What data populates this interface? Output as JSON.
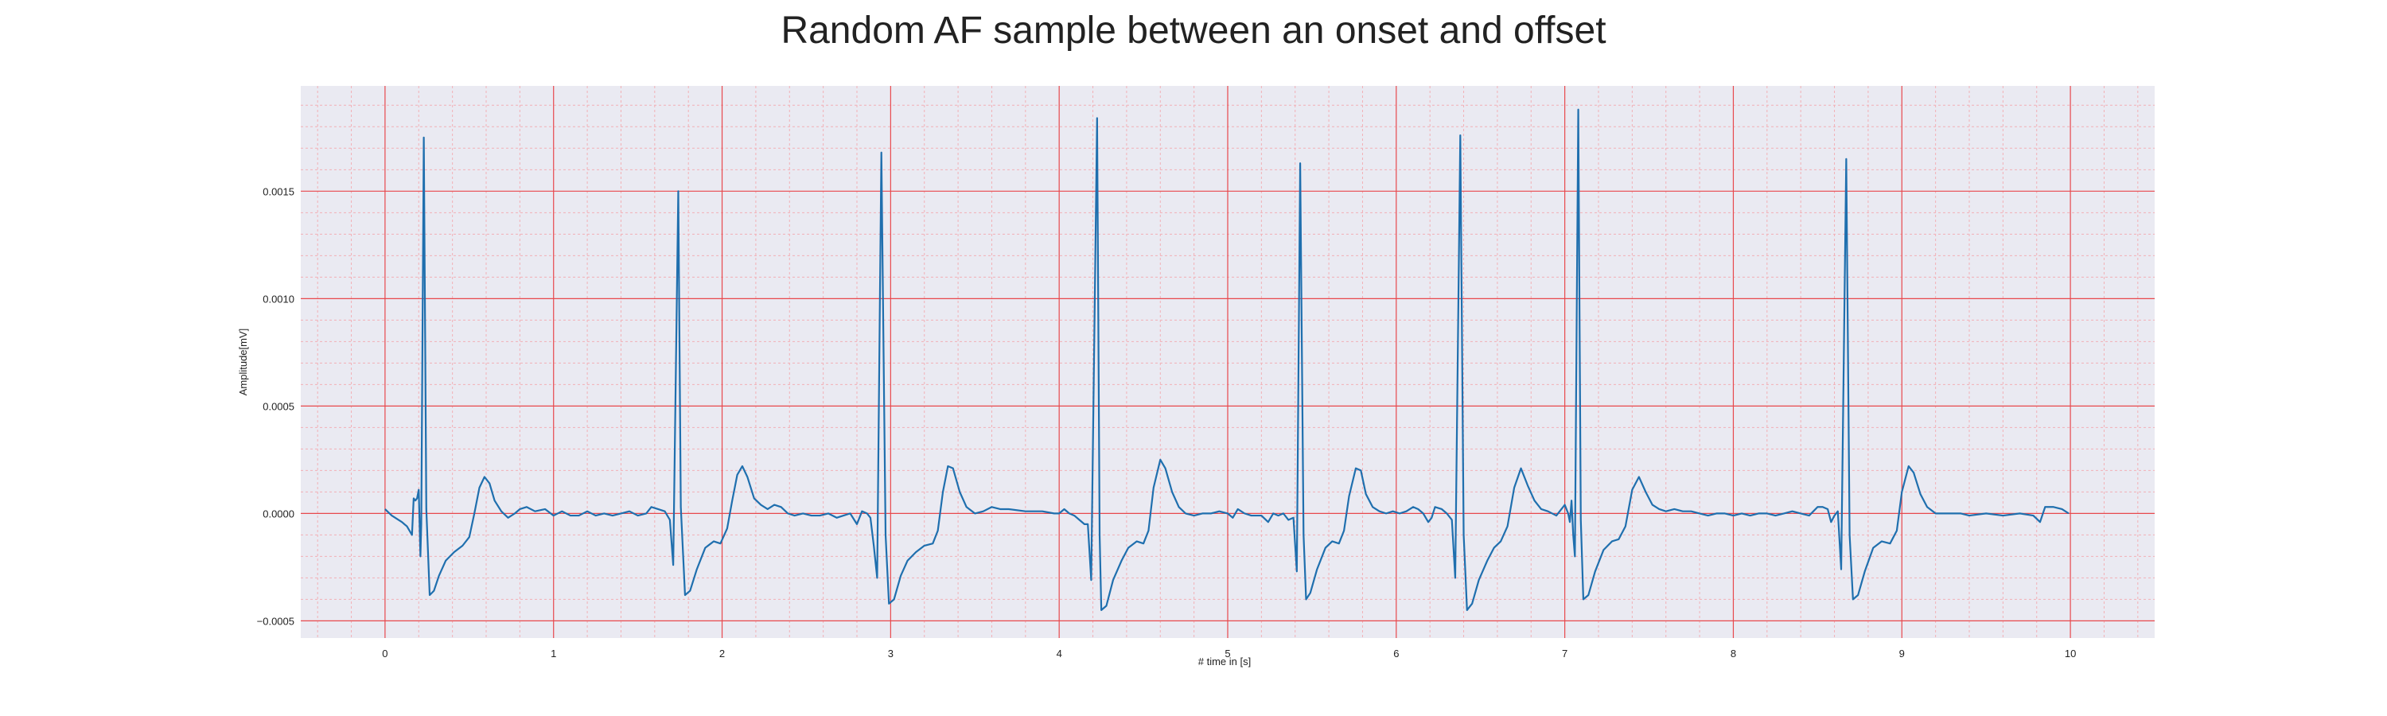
{
  "chart_data": {
    "type": "line",
    "title": "Random AF sample between an onset and offset",
    "xlabel": "# time in [s]",
    "ylabel": "Amplitude[mV]",
    "xlim": [
      -0.5,
      10.5
    ],
    "ylim": [
      -0.00058,
      0.00199
    ],
    "xticks": [
      0,
      1,
      2,
      3,
      4,
      5,
      6,
      7,
      8,
      9,
      10
    ],
    "xtick_labels": [
      "0",
      "1",
      "2",
      "3",
      "4",
      "5",
      "6",
      "7",
      "8",
      "9",
      "10"
    ],
    "yticks": [
      -0.0005,
      0.0,
      0.0005,
      0.001,
      0.0015
    ],
    "ytick_labels": [
      "−0.0005",
      "0.0000",
      "0.0005",
      "0.0010",
      "0.0015"
    ],
    "grid": "on",
    "colors": {
      "plot_background": "#eaeaf2",
      "major_grid": "#e8484d",
      "minor_grid": "#f2b0b6",
      "line": "#1f6fae"
    },
    "series": [
      {
        "points": [
          [
            0.0,
            2e-05
          ],
          [
            0.04,
            -1e-05
          ],
          [
            0.1,
            -4e-05
          ],
          [
            0.13,
            -6e-05
          ],
          [
            0.16,
            -0.0001
          ],
          [
            0.17,
            7e-05
          ],
          [
            0.18,
            6e-05
          ],
          [
            0.19,
            7e-05
          ],
          [
            0.2,
            0.00011
          ],
          [
            0.21,
            -0.0002
          ],
          [
            0.215,
            -5e-05
          ],
          [
            0.23,
            0.00175
          ],
          [
            0.245,
            2e-05
          ],
          [
            0.265,
            -0.00038
          ],
          [
            0.29,
            -0.00036
          ],
          [
            0.32,
            -0.00029
          ],
          [
            0.36,
            -0.00022
          ],
          [
            0.41,
            -0.00018
          ],
          [
            0.46,
            -0.00015
          ],
          [
            0.5,
            -0.00011
          ],
          [
            0.53,
            0.0
          ],
          [
            0.56,
            0.00012
          ],
          [
            0.59,
            0.00017
          ],
          [
            0.62,
            0.00014
          ],
          [
            0.65,
            6e-05
          ],
          [
            0.69,
            1e-05
          ],
          [
            0.73,
            -2e-05
          ],
          [
            0.77,
            0.0
          ],
          [
            0.8,
            2e-05
          ],
          [
            0.84,
            3e-05
          ],
          [
            0.89,
            1e-05
          ],
          [
            0.95,
            2e-05
          ],
          [
            1.0,
            -1e-05
          ],
          [
            1.05,
            1e-05
          ],
          [
            1.1,
            -1e-05
          ],
          [
            1.15,
            -1e-05
          ],
          [
            1.2,
            1e-05
          ],
          [
            1.25,
            -1e-05
          ],
          [
            1.3,
            0.0
          ],
          [
            1.35,
            -1e-05
          ],
          [
            1.4,
            0.0
          ],
          [
            1.45,
            1e-05
          ],
          [
            1.5,
            -1e-05
          ],
          [
            1.55,
            0.0
          ],
          [
            1.58,
            3e-05
          ],
          [
            1.62,
            2e-05
          ],
          [
            1.66,
            1e-05
          ],
          [
            1.69,
            -3e-05
          ],
          [
            1.71,
            -0.00024
          ],
          [
            1.74,
            0.0015
          ],
          [
            1.755,
            3e-05
          ],
          [
            1.78,
            -0.00038
          ],
          [
            1.81,
            -0.00036
          ],
          [
            1.85,
            -0.00026
          ],
          [
            1.9,
            -0.00016
          ],
          [
            1.95,
            -0.00013
          ],
          [
            1.99,
            -0.00014
          ],
          [
            2.03,
            -7e-05
          ],
          [
            2.06,
            6e-05
          ],
          [
            2.09,
            0.00018
          ],
          [
            2.12,
            0.00022
          ],
          [
            2.15,
            0.00017
          ],
          [
            2.19,
            7e-05
          ],
          [
            2.23,
            4e-05
          ],
          [
            2.27,
            2e-05
          ],
          [
            2.31,
            4e-05
          ],
          [
            2.35,
            3e-05
          ],
          [
            2.39,
            0.0
          ],
          [
            2.43,
            -1e-05
          ],
          [
            2.48,
            0.0
          ],
          [
            2.53,
            -1e-05
          ],
          [
            2.58,
            -1e-05
          ],
          [
            2.63,
            0.0
          ],
          [
            2.68,
            -2e-05
          ],
          [
            2.72,
            -1e-05
          ],
          [
            2.76,
            0.0
          ],
          [
            2.8,
            -5e-05
          ],
          [
            2.83,
            1e-05
          ],
          [
            2.86,
            0.0
          ],
          [
            2.88,
            -2e-05
          ],
          [
            2.9,
            -0.00015
          ],
          [
            2.92,
            -0.0003
          ],
          [
            2.945,
            0.00168
          ],
          [
            2.97,
            -0.0001
          ],
          [
            2.99,
            -0.00042
          ],
          [
            3.02,
            -0.0004
          ],
          [
            3.06,
            -0.00029
          ],
          [
            3.1,
            -0.00022
          ],
          [
            3.15,
            -0.00018
          ],
          [
            3.2,
            -0.00015
          ],
          [
            3.25,
            -0.00014
          ],
          [
            3.28,
            -8e-05
          ],
          [
            3.31,
            0.0001
          ],
          [
            3.34,
            0.00022
          ],
          [
            3.37,
            0.00021
          ],
          [
            3.41,
            0.0001
          ],
          [
            3.45,
            3e-05
          ],
          [
            3.5,
            0.0
          ],
          [
            3.55,
            1e-05
          ],
          [
            3.6,
            3e-05
          ],
          [
            3.65,
            2e-05
          ],
          [
            3.7,
            2e-05
          ],
          [
            3.8,
            1e-05
          ],
          [
            3.9,
            1e-05
          ],
          [
            3.97,
            0.0
          ],
          [
            4.0,
            0.0
          ],
          [
            4.03,
            2e-05
          ],
          [
            4.06,
            0.0
          ],
          [
            4.09,
            -1e-05
          ],
          [
            4.12,
            -3e-05
          ],
          [
            4.15,
            -5e-05
          ],
          [
            4.17,
            -5e-05
          ],
          [
            4.19,
            -0.00031
          ],
          [
            4.225,
            0.00184
          ],
          [
            4.24,
            -0.0001
          ],
          [
            4.25,
            -0.00045
          ],
          [
            4.28,
            -0.00043
          ],
          [
            4.32,
            -0.00031
          ],
          [
            4.37,
            -0.00022
          ],
          [
            4.41,
            -0.00016
          ],
          [
            4.46,
            -0.00013
          ],
          [
            4.5,
            -0.00014
          ],
          [
            4.53,
            -8e-05
          ],
          [
            4.56,
            0.00012
          ],
          [
            4.6,
            0.00025
          ],
          [
            4.63,
            0.00021
          ],
          [
            4.67,
            0.0001
          ],
          [
            4.71,
            3e-05
          ],
          [
            4.75,
            0.0
          ],
          [
            4.8,
            -1e-05
          ],
          [
            4.85,
            0.0
          ],
          [
            4.9,
            0.0
          ],
          [
            4.95,
            1e-05
          ],
          [
            5.0,
            0.0
          ],
          [
            5.03,
            -2e-05
          ],
          [
            5.06,
            2e-05
          ],
          [
            5.1,
            0.0
          ],
          [
            5.14,
            -1e-05
          ],
          [
            5.2,
            -1e-05
          ],
          [
            5.24,
            -4e-05
          ],
          [
            5.27,
            0.0
          ],
          [
            5.3,
            -1e-05
          ],
          [
            5.33,
            0.0
          ],
          [
            5.36,
            -3e-05
          ],
          [
            5.39,
            -2e-05
          ],
          [
            5.41,
            -0.00027
          ],
          [
            5.43,
            0.00163
          ],
          [
            5.45,
            -0.0001
          ],
          [
            5.465,
            -0.0004
          ],
          [
            5.49,
            -0.00037
          ],
          [
            5.53,
            -0.00026
          ],
          [
            5.58,
            -0.00016
          ],
          [
            5.62,
            -0.00013
          ],
          [
            5.66,
            -0.00014
          ],
          [
            5.69,
            -8e-05
          ],
          [
            5.72,
            8e-05
          ],
          [
            5.76,
            0.00021
          ],
          [
            5.79,
            0.0002
          ],
          [
            5.82,
            9e-05
          ],
          [
            5.86,
            3e-05
          ],
          [
            5.9,
            1e-05
          ],
          [
            5.94,
            0.0
          ],
          [
            5.98,
            1e-05
          ],
          [
            6.02,
            0.0
          ],
          [
            6.06,
            1e-05
          ],
          [
            6.1,
            3e-05
          ],
          [
            6.13,
            2e-05
          ],
          [
            6.16,
            0.0
          ],
          [
            6.19,
            -4e-05
          ],
          [
            6.21,
            -2e-05
          ],
          [
            6.23,
            3e-05
          ],
          [
            6.27,
            2e-05
          ],
          [
            6.3,
            0.0
          ],
          [
            6.33,
            -3e-05
          ],
          [
            6.35,
            -0.0003
          ],
          [
            6.38,
            0.00176
          ],
          [
            6.4,
            -0.0001
          ],
          [
            6.42,
            -0.00045
          ],
          [
            6.45,
            -0.00042
          ],
          [
            6.49,
            -0.00031
          ],
          [
            6.54,
            -0.00022
          ],
          [
            6.58,
            -0.00016
          ],
          [
            6.62,
            -0.00013
          ],
          [
            6.66,
            -6e-05
          ],
          [
            6.7,
            0.00012
          ],
          [
            6.74,
            0.00021
          ],
          [
            6.78,
            0.00013
          ],
          [
            6.82,
            6e-05
          ],
          [
            6.86,
            2e-05
          ],
          [
            6.9,
            1e-05
          ],
          [
            6.95,
            -1e-05
          ],
          [
            6.98,
            2e-05
          ],
          [
            7.0,
            4e-05
          ],
          [
            7.02,
            0.0
          ],
          [
            7.03,
            -4e-05
          ],
          [
            7.04,
            6e-05
          ],
          [
            7.05,
            -0.0001
          ],
          [
            7.06,
            -0.0002
          ],
          [
            7.08,
            0.00188
          ],
          [
            7.095,
            -3e-05
          ],
          [
            7.11,
            -0.0004
          ],
          [
            7.14,
            -0.00038
          ],
          [
            7.18,
            -0.00027
          ],
          [
            7.23,
            -0.00017
          ],
          [
            7.28,
            -0.00013
          ],
          [
            7.32,
            -0.00012
          ],
          [
            7.36,
            -6e-05
          ],
          [
            7.4,
            0.00011
          ],
          [
            7.44,
            0.00017
          ],
          [
            7.48,
            0.0001
          ],
          [
            7.52,
            4e-05
          ],
          [
            7.56,
            2e-05
          ],
          [
            7.6,
            1e-05
          ],
          [
            7.65,
            2e-05
          ],
          [
            7.7,
            1e-05
          ],
          [
            7.75,
            1e-05
          ],
          [
            7.8,
            0.0
          ],
          [
            7.85,
            -1e-05
          ],
          [
            7.9,
            0.0
          ],
          [
            7.95,
            0.0
          ],
          [
            8.0,
            -1e-05
          ],
          [
            8.05,
            0.0
          ],
          [
            8.1,
            -1e-05
          ],
          [
            8.15,
            0.0
          ],
          [
            8.2,
            0.0
          ],
          [
            8.25,
            -1e-05
          ],
          [
            8.3,
            0.0
          ],
          [
            8.35,
            1e-05
          ],
          [
            8.4,
            0.0
          ],
          [
            8.45,
            -1e-05
          ],
          [
            8.5,
            3e-05
          ],
          [
            8.53,
            3e-05
          ],
          [
            8.56,
            2e-05
          ],
          [
            8.58,
            -4e-05
          ],
          [
            8.6,
            -1e-05
          ],
          [
            8.62,
            1e-05
          ],
          [
            8.64,
            -0.00026
          ],
          [
            8.67,
            0.00165
          ],
          [
            8.69,
            -0.0001
          ],
          [
            8.71,
            -0.0004
          ],
          [
            8.74,
            -0.00038
          ],
          [
            8.78,
            -0.00027
          ],
          [
            8.83,
            -0.00016
          ],
          [
            8.88,
            -0.00013
          ],
          [
            8.93,
            -0.00014
          ],
          [
            8.97,
            -8e-05
          ],
          [
            9.0,
            0.0001
          ],
          [
            9.04,
            0.00022
          ],
          [
            9.07,
            0.00019
          ],
          [
            9.11,
            9e-05
          ],
          [
            9.15,
            3e-05
          ],
          [
            9.2,
            0.0
          ],
          [
            9.25,
            0.0
          ],
          [
            9.3,
            0.0
          ],
          [
            9.35,
            0.0
          ],
          [
            9.4,
            -1e-05
          ],
          [
            9.5,
            0.0
          ],
          [
            9.6,
            -1e-05
          ],
          [
            9.7,
            0.0
          ],
          [
            9.78,
            -1e-05
          ],
          [
            9.82,
            -4e-05
          ],
          [
            9.85,
            3e-05
          ],
          [
            9.9,
            3e-05
          ],
          [
            9.95,
            2e-05
          ],
          [
            9.99,
            0.0
          ]
        ]
      }
    ]
  }
}
